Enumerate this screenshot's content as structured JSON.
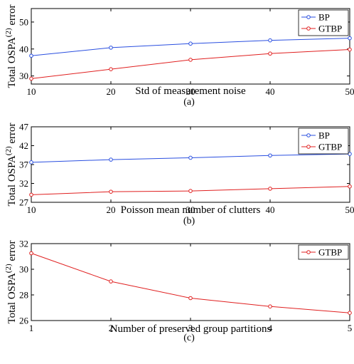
{
  "panels": [
    {
      "caption": "(a)",
      "chart_data": {
        "type": "line",
        "x": [
          10,
          20,
          30,
          40,
          50
        ],
        "xticks": [
          "10",
          "20",
          "30",
          "40",
          "50"
        ],
        "xlim": [
          10,
          50
        ],
        "ylim": [
          27,
          55
        ],
        "yticks": [
          "30",
          "40",
          "50"
        ],
        "xlabel": "Std of measurement noise",
        "ylabel_parts": [
          "Total OSPA",
          "(2)",
          " error"
        ],
        "legend_position": "top-right",
        "series": [
          {
            "name": "BP",
            "color": "#2a4fe0",
            "values": [
              37.5,
              40.5,
              42.0,
              43.2,
              44.0
            ]
          },
          {
            "name": "GTBP",
            "color": "#e02020",
            "values": [
              29.0,
              32.5,
              36.0,
              38.3,
              39.8
            ]
          }
        ]
      }
    },
    {
      "caption": "(b)",
      "chart_data": {
        "type": "line",
        "x": [
          10,
          20,
          30,
          40,
          50
        ],
        "xticks": [
          "10",
          "20",
          "30",
          "40",
          "50"
        ],
        "xlim": [
          10,
          50
        ],
        "ylim": [
          27,
          47
        ],
        "yticks": [
          "27",
          "32",
          "37",
          "42",
          "47"
        ],
        "xlabel": "Poisson mean number of clutters",
        "ylabel_parts": [
          "Total OSPA",
          "(2)",
          " error"
        ],
        "legend_position": "top-right",
        "series": [
          {
            "name": "BP",
            "color": "#2a4fe0",
            "values": [
              37.6,
              38.3,
              38.8,
              39.4,
              39.8
            ]
          },
          {
            "name": "GTBP",
            "color": "#e02020",
            "values": [
              29.0,
              29.8,
              30.0,
              30.6,
              31.2
            ]
          }
        ]
      }
    },
    {
      "caption": "(c)",
      "chart_data": {
        "type": "line",
        "x": [
          1,
          2,
          3,
          4,
          5
        ],
        "xticks": [
          "1",
          "2",
          "3",
          "4",
          "5"
        ],
        "xlim": [
          1,
          5
        ],
        "ylim": [
          26,
          32
        ],
        "yticks": [
          "26",
          "28",
          "30",
          "32"
        ],
        "xlabel": "Number of preserved group partitions",
        "ylabel_parts": [
          "Total OSPA",
          "(2)",
          " error"
        ],
        "legend_position": "top-right",
        "series": [
          {
            "name": "GTBP",
            "color": "#e02020",
            "values": [
              31.25,
              29.05,
              27.75,
              27.1,
              26.6
            ]
          }
        ]
      }
    }
  ]
}
